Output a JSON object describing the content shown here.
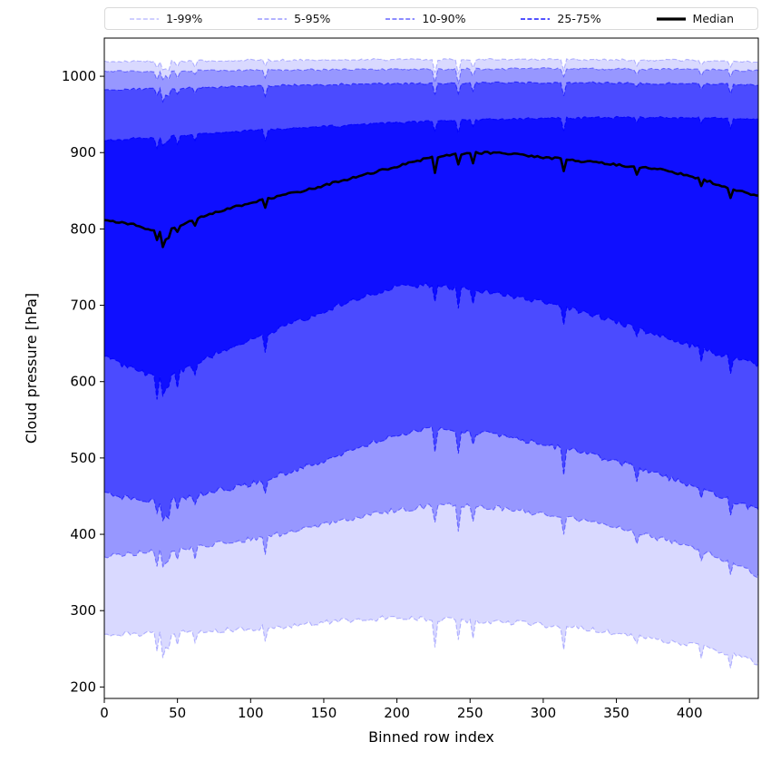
{
  "legend": {
    "items": [
      {
        "label": "1-99%",
        "alpha": 0.15,
        "line": "dashed",
        "color": "#0000ff"
      },
      {
        "label": "5-95%",
        "alpha": 0.3,
        "line": "dashed",
        "color": "#0000ff"
      },
      {
        "label": "10-90%",
        "alpha": 0.5,
        "line": "dashed",
        "color": "#0000ff"
      },
      {
        "label": "25-75%",
        "alpha": 0.8,
        "line": "dashed",
        "color": "#0000ff"
      },
      {
        "label": "Median",
        "alpha": 1.0,
        "line": "solid",
        "color": "#000000"
      }
    ]
  },
  "axes": {
    "xlabel": "Binned row index",
    "ylabel": "Cloud pressure [hPa]",
    "x_ticks": [
      0,
      50,
      100,
      150,
      200,
      250,
      300,
      350,
      400
    ],
    "y_ticks": [
      200,
      300,
      400,
      500,
      600,
      700,
      800,
      900,
      1000
    ],
    "xlim": [
      0,
      447
    ],
    "ylim": [
      185,
      1050
    ]
  },
  "chart_data": {
    "type": "area",
    "title": "",
    "xlabel": "Binned row index",
    "ylabel": "Cloud pressure [hPa]",
    "description": "Nested percentile bands (fan chart) of cloud pressure versus binned row index with a thick black median line; translucent blue fills overlap so inner bands appear darker.",
    "band_color": "#0000ff",
    "median_color": "#000000",
    "bands": [
      {
        "label": "1-99%",
        "low": "p01",
        "high": "p99",
        "alpha": 0.15
      },
      {
        "label": "5-95%",
        "low": "p05",
        "high": "p95",
        "alpha": 0.3
      },
      {
        "label": "10-90%",
        "low": "p10",
        "high": "p90",
        "alpha": 0.5
      },
      {
        "label": "25-75%",
        "low": "p25",
        "high": "p75",
        "alpha": 0.8
      }
    ],
    "series": [
      {
        "name": "p99",
        "role": "upper",
        "x": [
          0,
          100,
          200,
          300,
          400,
          447
        ],
        "values": [
          1019,
          1021,
          1022,
          1022,
          1021,
          1019
        ]
      },
      {
        "name": "p95",
        "role": "upper",
        "x": [
          0,
          100,
          200,
          300,
          400,
          447
        ],
        "values": [
          1006,
          1008,
          1009,
          1010,
          1009,
          1007
        ]
      },
      {
        "name": "p90",
        "role": "upper",
        "x": [
          0,
          60,
          120,
          180,
          240,
          300,
          360,
          420,
          447
        ],
        "values": [
          982,
          985,
          988,
          990,
          991,
          992,
          991,
          990,
          988
        ]
      },
      {
        "name": "p75",
        "role": "upper",
        "x": [
          0,
          50,
          100,
          150,
          200,
          250,
          300,
          350,
          400,
          447
        ],
        "values": [
          916,
          922,
          929,
          934,
          939,
          943,
          945,
          946,
          946,
          944
        ]
      },
      {
        "name": "median",
        "role": "median",
        "x": [
          0,
          20,
          40,
          60,
          80,
          100,
          120,
          140,
          160,
          180,
          200,
          220,
          240,
          260,
          280,
          300,
          320,
          340,
          360,
          380,
          400,
          420,
          440,
          447
        ],
        "values": [
          812,
          806,
          794,
          812,
          824,
          834,
          843,
          852,
          862,
          872,
          882,
          892,
          898,
          900,
          898,
          894,
          890,
          886,
          882,
          878,
          870,
          858,
          846,
          843
        ]
      },
      {
        "name": "p25",
        "role": "lower",
        "x": [
          0,
          20,
          40,
          60,
          80,
          100,
          120,
          140,
          160,
          180,
          200,
          220,
          240,
          260,
          280,
          300,
          320,
          340,
          360,
          380,
          400,
          420,
          440,
          447
        ],
        "values": [
          632,
          616,
          604,
          620,
          640,
          656,
          670,
          684,
          700,
          714,
          724,
          726,
          722,
          718,
          712,
          704,
          694,
          684,
          672,
          660,
          648,
          636,
          626,
          622
        ]
      },
      {
        "name": "p10",
        "role": "lower",
        "x": [
          0,
          20,
          40,
          60,
          80,
          100,
          120,
          140,
          160,
          180,
          200,
          220,
          240,
          260,
          280,
          300,
          320,
          340,
          360,
          380,
          400,
          420,
          440,
          447
        ],
        "values": [
          452,
          446,
          442,
          450,
          458,
          466,
          478,
          490,
          504,
          518,
          530,
          538,
          536,
          532,
          526,
          518,
          510,
          500,
          490,
          478,
          464,
          450,
          436,
          432
        ]
      },
      {
        "name": "p05",
        "role": "lower",
        "x": [
          0,
          40,
          80,
          120,
          160,
          200,
          240,
          280,
          320,
          360,
          400,
          430,
          447
        ],
        "values": [
          372,
          378,
          388,
          400,
          416,
          432,
          440,
          432,
          420,
          404,
          384,
          362,
          346
        ]
      },
      {
        "name": "p01",
        "role": "lower",
        "x": [
          0,
          40,
          80,
          120,
          160,
          200,
          240,
          280,
          320,
          360,
          400,
          430,
          447
        ],
        "values": [
          268,
          271,
          274,
          279,
          286,
          291,
          288,
          284,
          278,
          268,
          256,
          242,
          231
        ]
      }
    ],
    "render_hints": {
      "noise_seed": 42,
      "step": 2,
      "shared_spike_prob": 0.07,
      "upper": {
        "noise": 1.4,
        "spike_amp": 22
      },
      "lower": {
        "noise": 3.5,
        "spike_amp": 42
      },
      "median": {
        "noise": 1.4,
        "spike_amp": 24
      }
    }
  }
}
